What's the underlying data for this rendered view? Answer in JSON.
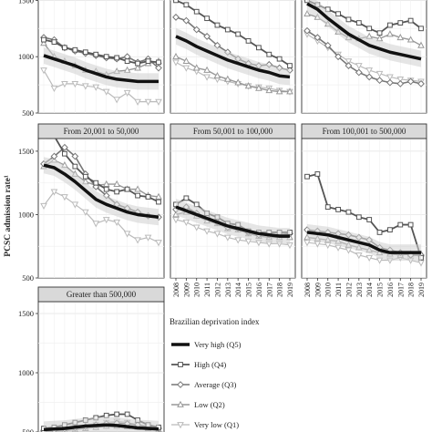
{
  "figure": {
    "ylabel": "PCSC admission rate¹",
    "legend_title": "Brazilian deprivation index"
  },
  "chart_data": {
    "type": "line",
    "x": [
      2008,
      2009,
      2010,
      2011,
      2012,
      2013,
      2014,
      2015,
      2016,
      2017,
      2018,
      2019
    ],
    "ylim": [
      500,
      1600
    ],
    "y_ticks": [
      500,
      1000,
      1500
    ],
    "grid": true,
    "legend_position": "bottom-right",
    "series_styles": [
      {
        "name": "Very high (Q5)",
        "color": "#111111",
        "marker": "none",
        "line_width": 3.5
      },
      {
        "name": "High (Q4)",
        "color": "#555555",
        "marker": "square",
        "line_width": 1.8
      },
      {
        "name": "Average (Q3)",
        "color": "#777777",
        "marker": "diamond",
        "line_width": 1.6
      },
      {
        "name": "Low (Q2)",
        "color": "#999999",
        "marker": "triangle-up",
        "line_width": 1.4
      },
      {
        "name": "Very low (Q1)",
        "color": "#bbbbbb",
        "marker": "triangle-down",
        "line_width": 1.2
      }
    ],
    "panels": [
      {
        "title": "",
        "series": [
          {
            "name": "Very high (Q5)",
            "values": [
              1010,
              980,
              950,
              920,
              880,
              850,
              820,
              800,
              790,
              780,
              780,
              780
            ]
          },
          {
            "name": "High (Q4)",
            "values": [
              1150,
              1130,
              1080,
              1060,
              1040,
              1020,
              1000,
              990,
              960,
              940,
              960,
              950
            ]
          },
          {
            "name": "Average (Q3)",
            "values": [
              1170,
              1150,
              1080,
              1050,
              1030,
              1010,
              990,
              980,
              1000,
              950,
              980,
              900
            ]
          },
          {
            "name": "Low (Q2)",
            "values": [
              1120,
              1000,
              960,
              920,
              880,
              870,
              840,
              870,
              880,
              900,
              940,
              960
            ]
          },
          {
            "name": "Very low (Q1)",
            "values": [
              880,
              720,
              760,
              760,
              740,
              730,
              690,
              620,
              680,
              600,
              600,
              600
            ]
          }
        ]
      },
      {
        "title": "",
        "series": [
          {
            "name": "Very high (Q5)",
            "values": [
              1180,
              1140,
              1090,
              1050,
              1010,
              970,
              940,
              910,
              880,
              860,
              830,
              820
            ]
          },
          {
            "name": "High (Q4)",
            "values": [
              1500,
              1460,
              1400,
              1340,
              1280,
              1240,
              1200,
              1140,
              1080,
              1020,
              980,
              920
            ]
          },
          {
            "name": "Average (Q3)",
            "values": [
              1350,
              1320,
              1240,
              1180,
              1100,
              1040,
              980,
              940,
              920,
              930,
              900,
              880
            ]
          },
          {
            "name": "Low (Q2)",
            "values": [
              1000,
              960,
              900,
              880,
              830,
              800,
              770,
              740,
              720,
              700,
              690,
              690
            ]
          },
          {
            "name": "Very low (Q1)",
            "values": [
              950,
              900,
              870,
              820,
              800,
              780,
              760,
              740,
              730,
              720,
              700,
              690
            ]
          }
        ]
      },
      {
        "title": "",
        "series": [
          {
            "name": "Very high (Q5)",
            "values": [
              1470,
              1420,
              1340,
              1270,
              1200,
              1150,
              1100,
              1070,
              1040,
              1020,
              1000,
              980
            ]
          },
          {
            "name": "High (Q4)",
            "values": [
              1500,
              1460,
              1420,
              1380,
              1330,
              1300,
              1250,
              1210,
              1280,
              1300,
              1320,
              1250
            ]
          },
          {
            "name": "Average (Q3)",
            "values": [
              1230,
              1170,
              1100,
              1000,
              920,
              860,
              820,
              790,
              770,
              760,
              780,
              760
            ]
          },
          {
            "name": "Low (Q2)",
            "values": [
              1380,
              1350,
              1290,
              1220,
              1170,
              1160,
              1180,
              1160,
              1200,
              1170,
              1150,
              1100
            ]
          },
          {
            "name": "Very low (Q1)",
            "values": [
              1200,
              1140,
              1080,
              1020,
              960,
              920,
              880,
              850,
              820,
              800,
              790,
              780
            ]
          }
        ]
      },
      {
        "title": "From 20,001 to 50,000",
        "series": [
          {
            "name": "Very high (Q5)",
            "values": [
              1390,
              1370,
              1320,
              1260,
              1190,
              1120,
              1080,
              1050,
              1020,
              1000,
              990,
              980
            ]
          },
          {
            "name": "High (Q4)",
            "values": [
              1620,
              1620,
              1480,
              1380,
              1300,
              1250,
              1200,
              1180,
              1200,
              1150,
              1140,
              1100
            ]
          },
          {
            "name": "Average (Q3)",
            "values": [
              1400,
              1460,
              1530,
              1460,
              1320,
              1220,
              1150,
              1080,
              1050,
              1020,
              990,
              980
            ]
          },
          {
            "name": "Low (Q2)",
            "values": [
              1380,
              1430,
              1390,
              1320,
              1260,
              1230,
              1240,
              1240,
              1200,
              1200,
              1150,
              1140
            ]
          },
          {
            "name": "Very low (Q1)",
            "values": [
              1070,
              1180,
              1140,
              1080,
              1020,
              930,
              960,
              940,
              850,
              800,
              820,
              780
            ]
          }
        ]
      },
      {
        "title": "From 50,001 to 100,000",
        "series": [
          {
            "name": "Very high (Q5)",
            "values": [
              1060,
              1030,
              1000,
              970,
              940,
              910,
              890,
              870,
              850,
              840,
              830,
              830
            ]
          },
          {
            "name": "High (Q4)",
            "values": [
              1080,
              1130,
              1080,
              1010,
              980,
              930,
              920,
              870,
              860,
              860,
              860,
              860
            ]
          },
          {
            "name": "Average (Q3)",
            "values": [
              1040,
              1060,
              1010,
              980,
              940,
              900,
              890,
              860,
              840,
              840,
              840,
              850
            ]
          },
          {
            "name": "Low (Q2)",
            "values": [
              1000,
              1020,
              990,
              950,
              930,
              890,
              880,
              850,
              830,
              820,
              820,
              820
            ]
          },
          {
            "name": "Very low (Q1)",
            "values": [
              960,
              940,
              900,
              870,
              850,
              820,
              800,
              790,
              780,
              770,
              770,
              760
            ]
          }
        ]
      },
      {
        "title": "From 100,001 to 500,000",
        "series": [
          {
            "name": "Very high (Q5)",
            "values": [
              860,
              850,
              840,
              820,
              800,
              780,
              760,
              720,
              700,
              700,
              700,
              700
            ]
          },
          {
            "name": "High (Q4)",
            "values": [
              1300,
              1320,
              1060,
              1040,
              1020,
              980,
              960,
              860,
              880,
              920,
              920,
              660
            ]
          },
          {
            "name": "Average (Q3)",
            "values": [
              880,
              870,
              860,
              850,
              840,
              820,
              800,
              740,
              720,
              700,
              680,
              680
            ]
          },
          {
            "name": "Low (Q2)",
            "values": [
              820,
              810,
              800,
              790,
              760,
              740,
              720,
              700,
              690,
              680,
              690,
              690
            ]
          },
          {
            "name": "Very low (Q1)",
            "values": [
              780,
              770,
              760,
              740,
              720,
              680,
              660,
              640,
              640,
              660,
              640,
              620
            ]
          }
        ]
      },
      {
        "title": "Greater than 500,000",
        "series": [
          {
            "name": "Very high (Q5)",
            "values": [
              520,
              525,
              530,
              540,
              550,
              555,
              560,
              555,
              545,
              535,
              530,
              525
            ]
          },
          {
            "name": "High (Q4)",
            "values": [
              530,
              540,
              560,
              580,
              600,
              620,
              640,
              650,
              650,
              600,
              560,
              540
            ]
          },
          {
            "name": "Average (Q3)",
            "values": [
              510,
              515,
              525,
              535,
              545,
              560,
              570,
              575,
              570,
              560,
              545,
              530
            ]
          },
          {
            "name": "Low (Q2)",
            "values": [
              505,
              510,
              515,
              520,
              530,
              540,
              550,
              550,
              545,
              540,
              530,
              520
            ]
          },
          {
            "name": "Very low (Q1)",
            "values": [
              500,
              505,
              510,
              520,
              540,
              560,
              580,
              590,
              580,
              560,
              540,
              520
            ]
          }
        ]
      }
    ]
  }
}
